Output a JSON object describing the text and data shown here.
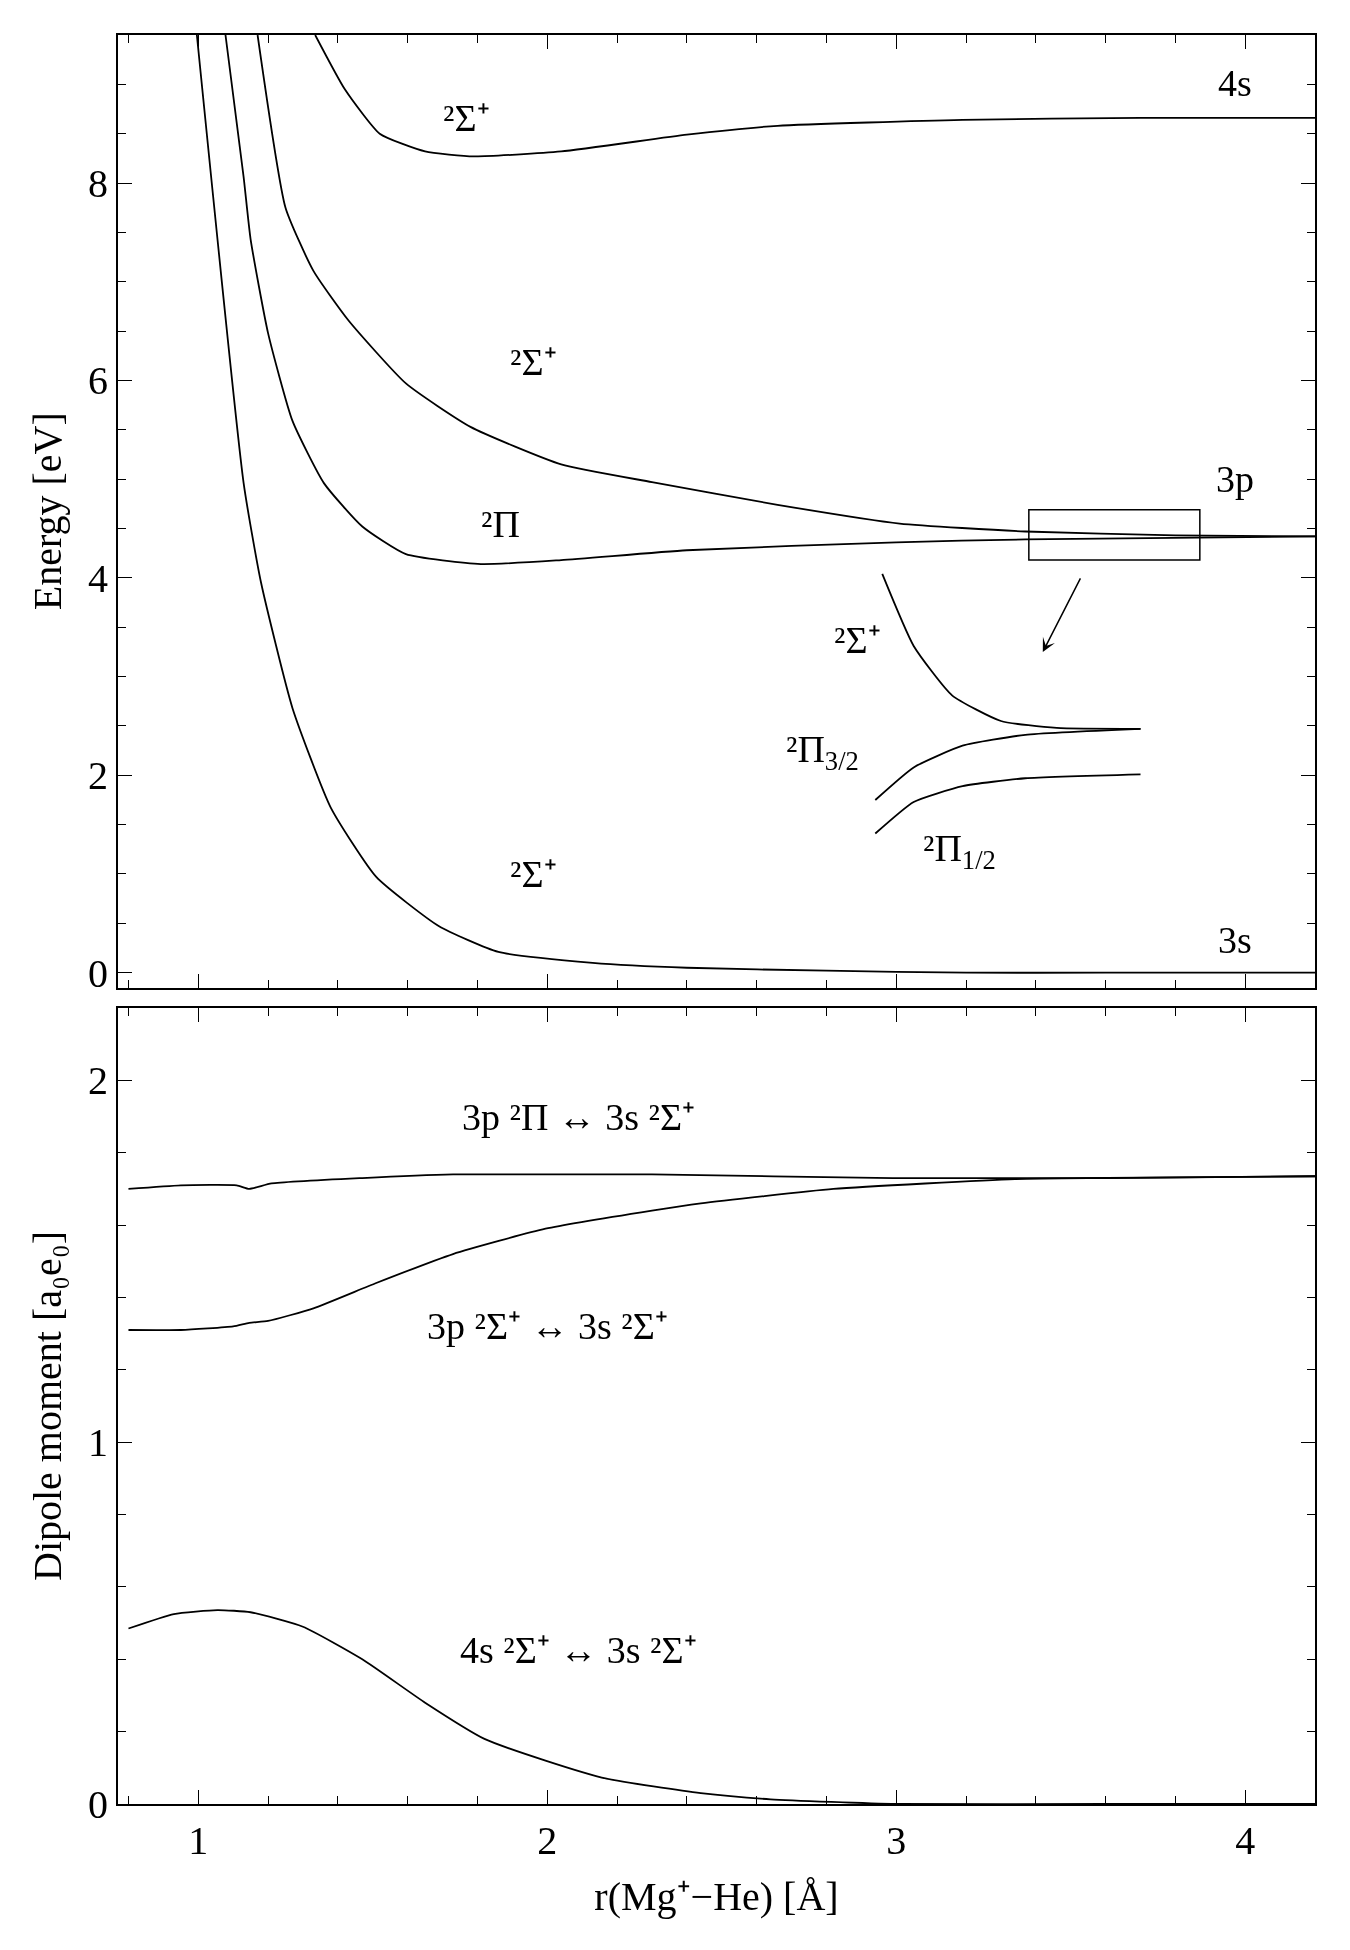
{
  "chart_data": [
    {
      "type": "line",
      "ylabel": "Energy [eV]",
      "xlim": [
        0.77,
        4.2
      ],
      "ylim": [
        -0.15,
        9.5
      ],
      "tick_labels": "y",
      "grid": false,
      "marker": "none",
      "line_style": "solid",
      "xticks": [
        {
          "value": 0.8,
          "label": null
        },
        1,
        {
          "value": 1.2,
          "label": null
        },
        {
          "value": 1.4,
          "label": null
        },
        {
          "value": 1.6,
          "label": null
        },
        {
          "value": 1.8,
          "label": null
        },
        2,
        {
          "value": 2.2,
          "label": null
        },
        {
          "value": 2.4,
          "label": null
        },
        {
          "value": 2.6,
          "label": null
        },
        {
          "value": 2.8,
          "label": null
        },
        3,
        {
          "value": 3.2,
          "label": null
        },
        {
          "value": 3.4,
          "label": null
        },
        {
          "value": 3.6,
          "label": null
        },
        {
          "value": 3.8,
          "label": null
        },
        4
      ],
      "yticks": [
        0,
        {
          "value": 0.5,
          "label": null
        },
        {
          "value": 1,
          "label": null
        },
        {
          "value": 1.5,
          "label": null
        },
        2,
        {
          "value": 2.5,
          "label": null
        },
        {
          "value": 3,
          "label": null
        },
        {
          "value": 3.5,
          "label": null
        },
        4,
        {
          "value": 4.5,
          "label": null
        },
        {
          "value": 5,
          "label": null
        },
        {
          "value": 5.5,
          "label": null
        },
        6,
        {
          "value": 6.5,
          "label": null
        },
        {
          "value": 7,
          "label": null
        },
        {
          "value": 7.5,
          "label": null
        },
        8,
        {
          "value": 8.5,
          "label": null
        },
        {
          "value": 9,
          "label": null
        }
      ],
      "series": [
        {
          "color": "#000000",
          "x": [
            0.996,
            1.13,
            1.18,
            1.27,
            1.38,
            1.51,
            1.69,
            1.86,
            2.13,
            2.4,
            2.8,
            3.2,
            3.6,
            4.2
          ],
          "values": [
            9.5,
            4.96,
            3.95,
            2.68,
            1.67,
            0.97,
            0.47,
            0.21,
            0.1,
            0.05,
            0.02,
            0.0,
            0.0,
            0.0
          ]
        },
        {
          "color": "#000000",
          "x": [
            1.078,
            1.13,
            1.15,
            1.2,
            1.27,
            1.36,
            1.47,
            1.595,
            1.81,
            2.04,
            2.4,
            3.0,
            3.37,
            4.2
          ],
          "values": [
            9.5,
            8.06,
            7.43,
            6.48,
            5.59,
            4.96,
            4.52,
            4.24,
            4.14,
            4.18,
            4.28,
            4.36,
            4.39,
            4.42
          ]
        },
        {
          "color": "#000000",
          "x": [
            1.17,
            1.25,
            1.33,
            1.43,
            1.595,
            1.78,
            2.04,
            2.3,
            2.66,
            3.01,
            3.37,
            3.8,
            4.2
          ],
          "values": [
            9.5,
            7.75,
            7.11,
            6.61,
            5.97,
            5.53,
            5.15,
            4.97,
            4.74,
            4.55,
            4.47,
            4.43,
            4.42
          ]
        },
        {
          "color": "#000000",
          "x": [
            1.335,
            1.42,
            1.52,
            1.65,
            1.79,
            2.04,
            2.4,
            2.66,
            3.19,
            3.7,
            4.2
          ],
          "values": [
            9.5,
            8.95,
            8.5,
            8.32,
            8.27,
            8.32,
            8.49,
            8.58,
            8.64,
            8.66,
            8.66
          ]
        },
        {
          "color": "#000000",
          "x": [
            2.96,
            3.05,
            3.16,
            3.3,
            3.46,
            3.7
          ],
          "values": [
            4.04,
            3.31,
            2.81,
            2.55,
            2.48,
            2.47
          ]
        },
        {
          "color": "#000000",
          "x": [
            2.94,
            3.05,
            3.19,
            3.37,
            3.7
          ],
          "values": [
            1.75,
            2.08,
            2.3,
            2.41,
            2.47
          ]
        },
        {
          "color": "#000000",
          "x": [
            2.94,
            3.05,
            3.19,
            3.37,
            3.7
          ],
          "values": [
            1.41,
            1.73,
            1.89,
            1.97,
            2.01
          ]
        }
      ],
      "annotations": [
        "²Σ⁺",
        "²Σ⁺",
        "²Π",
        "²Σ⁺",
        "4s",
        "3p",
        "3s",
        "²Σ⁺",
        "²Π$_{3/2}$",
        "²Π$_{1/2}$"
      ]
    },
    {
      "type": "line",
      "xlabel": "r(Mg⁺−He) [Å]",
      "ylabel": "Dipole moment [a₀e₀]",
      "xlim": [
        0.77,
        4.2
      ],
      "ylim": [
        0,
        2.2
      ],
      "grid": false,
      "marker": "none",
      "line_style": "solid",
      "xticks": [
        {
          "value": 0.8,
          "label": null
        },
        1,
        {
          "value": 1.2,
          "label": null
        },
        {
          "value": 1.4,
          "label": null
        },
        {
          "value": 1.6,
          "label": null
        },
        {
          "value": 1.8,
          "label": null
        },
        2,
        {
          "value": 2.2,
          "label": null
        },
        {
          "value": 2.4,
          "label": null
        },
        {
          "value": 2.6,
          "label": null
        },
        {
          "value": 2.8,
          "label": null
        },
        3,
        {
          "value": 3.2,
          "label": null
        },
        {
          "value": 3.4,
          "label": null
        },
        {
          "value": 3.6,
          "label": null
        },
        {
          "value": 3.8,
          "label": null
        },
        4
      ],
      "yticks": [
        0,
        {
          "value": 0.2,
          "label": null
        },
        {
          "value": 0.4,
          "label": null
        },
        {
          "value": 0.6,
          "label": null
        },
        {
          "value": 0.8,
          "label": null
        },
        1,
        {
          "value": 1.2,
          "label": null
        },
        {
          "value": 1.4,
          "label": null
        },
        {
          "value": 1.6,
          "label": null
        },
        {
          "value": 1.8,
          "label": null
        },
        2
      ],
      "series": [
        {
          "color": "#000000",
          "x": [
            0.8,
            0.95,
            1.11,
            1.146,
            1.21,
            1.47,
            1.73,
            1.995,
            2.3,
            2.99,
            3.51,
            4.2
          ],
          "values": [
            1.7,
            1.71,
            1.71,
            1.7,
            1.715,
            1.73,
            1.74,
            1.74,
            1.74,
            1.73,
            1.73,
            1.735
          ]
        },
        {
          "color": "#000000",
          "x": [
            0.8,
            0.95,
            1.1,
            1.146,
            1.2,
            1.33,
            1.51,
            1.73,
            1.995,
            2.3,
            2.44,
            2.82,
            3.34,
            3.6,
            4.2
          ],
          "values": [
            1.31,
            1.31,
            1.32,
            1.33,
            1.335,
            1.37,
            1.44,
            1.52,
            1.59,
            1.64,
            1.66,
            1.7,
            1.727,
            1.73,
            1.735
          ]
        },
        {
          "color": "#000000",
          "x": [
            0.8,
            0.93,
            1.055,
            1.15,
            1.3,
            1.47,
            1.65,
            1.82,
            1.995,
            2.17,
            2.44,
            2.64,
            3.0,
            3.6,
            4.2
          ],
          "values": [
            0.485,
            0.525,
            0.536,
            0.53,
            0.49,
            0.4,
            0.28,
            0.18,
            0.12,
            0.07,
            0.03,
            0.013,
            0.0,
            0.0,
            0.0
          ]
        }
      ],
      "annotations": [
        "3p ²Π ↔ 3s ²Σ⁺",
        "3p ²Σ⁺ ↔ 3s ²Σ⁺",
        "4s ²Σ⁺ ↔ 3s ²Σ⁺"
      ]
    }
  ]
}
